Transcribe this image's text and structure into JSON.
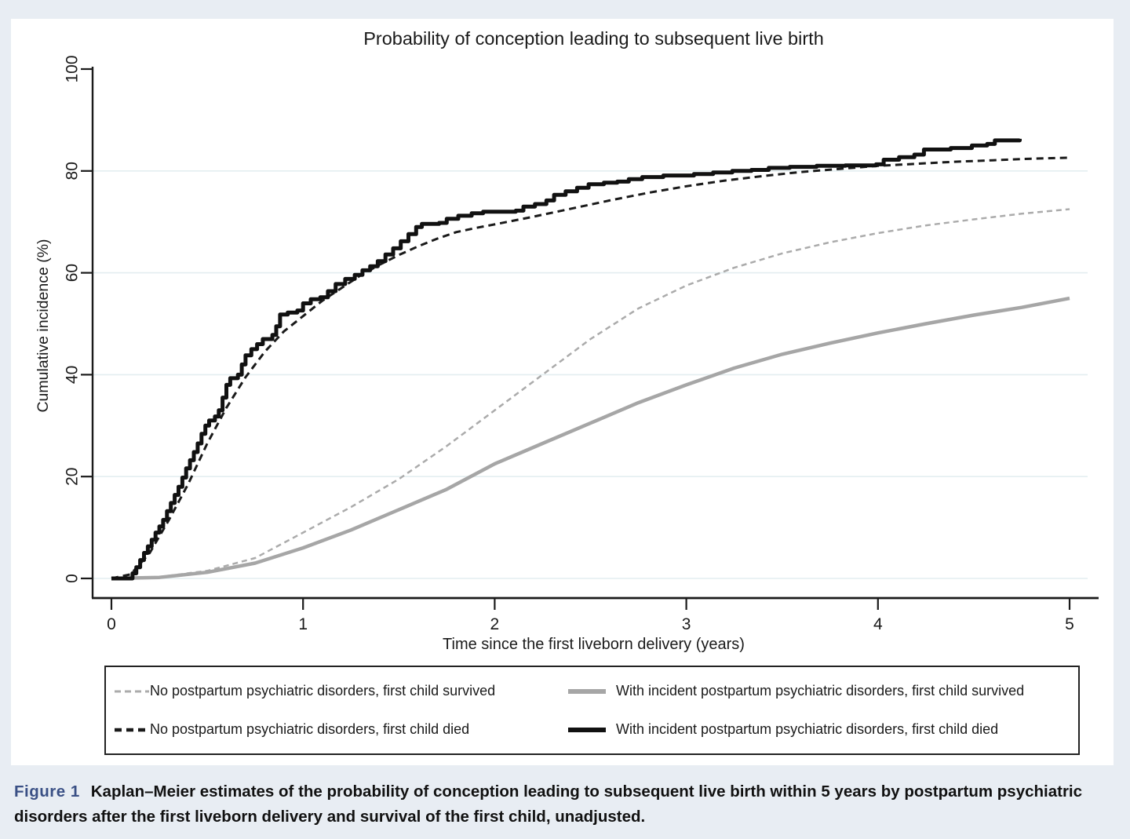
{
  "figure": {
    "caption_label": "Figure 1",
    "caption_label_color": "#3a5085",
    "caption_text": "Kaplan–Meier estimates of the probability of conception leading to subsequent live birth within 5 years by postpartum psychiatric disorders after the first liveborn delivery and survival of the first child, unadjusted."
  },
  "chart_data": {
    "type": "line",
    "title": "Probability of conception leading to subsequent live birth",
    "xlabel": "Time since the first liveborn delivery (years)",
    "ylabel": "Cumulative incidence (%)",
    "xlim": [
      0,
      5
    ],
    "ylim": [
      0,
      100
    ],
    "xticks": [
      0,
      1,
      2,
      3,
      4,
      5
    ],
    "yticks": [
      0,
      20,
      40,
      60,
      80,
      100
    ],
    "grid_y": [
      0,
      20,
      40,
      60,
      80
    ],
    "grid": "horizontal only, very light",
    "legend_position": "boxed legend below plot, 2 rows x 2 columns",
    "series": [
      {
        "name": "No postpartum psychiatric disorders, first child survived",
        "style": "dashed",
        "color": "#ababab",
        "width": 2.5,
        "dash": "7 5",
        "interp": "linear",
        "points": [
          [
            0,
            0
          ],
          [
            0.25,
            0.3
          ],
          [
            0.5,
            1.5
          ],
          [
            0.75,
            4
          ],
          [
            1,
            9
          ],
          [
            1.25,
            14
          ],
          [
            1.5,
            19.5
          ],
          [
            1.75,
            26
          ],
          [
            2,
            33
          ],
          [
            2.25,
            40
          ],
          [
            2.5,
            47
          ],
          [
            2.75,
            53
          ],
          [
            3,
            57.5
          ],
          [
            3.25,
            61
          ],
          [
            3.5,
            63.8
          ],
          [
            3.75,
            66
          ],
          [
            4,
            67.8
          ],
          [
            4.25,
            69.3
          ],
          [
            4.5,
            70.5
          ],
          [
            4.75,
            71.6
          ],
          [
            5,
            72.5
          ]
        ]
      },
      {
        "name": "With incident postpartum psychiatric disorders, first child survived",
        "style": "solid",
        "color": "#a6a6a6",
        "width": 4.5,
        "dash": null,
        "interp": "linear",
        "points": [
          [
            0,
            0
          ],
          [
            0.25,
            0.2
          ],
          [
            0.5,
            1.2
          ],
          [
            0.75,
            3
          ],
          [
            1,
            6
          ],
          [
            1.25,
            9.5
          ],
          [
            1.5,
            13.5
          ],
          [
            1.75,
            17.5
          ],
          [
            2,
            22.5
          ],
          [
            2.25,
            26.5
          ],
          [
            2.5,
            30.5
          ],
          [
            2.75,
            34.5
          ],
          [
            3,
            38
          ],
          [
            3.25,
            41.3
          ],
          [
            3.5,
            44
          ],
          [
            3.75,
            46.2
          ],
          [
            4,
            48.2
          ],
          [
            4.25,
            50
          ],
          [
            4.5,
            51.7
          ],
          [
            4.75,
            53.2
          ],
          [
            5,
            55
          ]
        ]
      },
      {
        "name": "No postpartum psychiatric disorders, first child died",
        "style": "dashed",
        "color": "#1a1a1a",
        "width": 3,
        "dash": "9 6",
        "interp": "linear",
        "points": [
          [
            0,
            0
          ],
          [
            0.1,
            0.8
          ],
          [
            0.2,
            5
          ],
          [
            0.3,
            11.5
          ],
          [
            0.4,
            18.5
          ],
          [
            0.5,
            26.5
          ],
          [
            0.6,
            33.5
          ],
          [
            0.7,
            39.5
          ],
          [
            0.8,
            44.5
          ],
          [
            0.9,
            48.5
          ],
          [
            1,
            51.5
          ],
          [
            1.1,
            54.5
          ],
          [
            1.2,
            57
          ],
          [
            1.3,
            59.5
          ],
          [
            1.4,
            61.6
          ],
          [
            1.5,
            63.5
          ],
          [
            1.6,
            65.2
          ],
          [
            1.7,
            66.7
          ],
          [
            1.8,
            68
          ],
          [
            1.9,
            68.8
          ],
          [
            2,
            69.5
          ],
          [
            2.2,
            71
          ],
          [
            2.4,
            72.6
          ],
          [
            2.6,
            74.2
          ],
          [
            2.8,
            75.7
          ],
          [
            3,
            77
          ],
          [
            3.2,
            78.1
          ],
          [
            3.4,
            79
          ],
          [
            3.6,
            79.8
          ],
          [
            3.8,
            80.4
          ],
          [
            4,
            81
          ],
          [
            4.2,
            81.4
          ],
          [
            4.4,
            81.8
          ],
          [
            4.6,
            82.1
          ],
          [
            4.8,
            82.4
          ],
          [
            5,
            82.6
          ]
        ]
      },
      {
        "name": "With incident postpartum psychiatric disorders, first child died",
        "style": "solid",
        "color": "#111111",
        "width": 5,
        "dash": null,
        "interp": "step",
        "points": [
          [
            0,
            0
          ],
          [
            0.09,
            0
          ],
          [
            0.11,
            1
          ],
          [
            0.13,
            2.2
          ],
          [
            0.15,
            3.6
          ],
          [
            0.17,
            5
          ],
          [
            0.19,
            6.3
          ],
          [
            0.21,
            7.6
          ],
          [
            0.23,
            9
          ],
          [
            0.25,
            10.2
          ],
          [
            0.27,
            11.5
          ],
          [
            0.29,
            13.2
          ],
          [
            0.31,
            14.8
          ],
          [
            0.33,
            16.4
          ],
          [
            0.35,
            18
          ],
          [
            0.37,
            19.8
          ],
          [
            0.39,
            21.6
          ],
          [
            0.41,
            23.2
          ],
          [
            0.43,
            24.8
          ],
          [
            0.45,
            26.5
          ],
          [
            0.47,
            28.4
          ],
          [
            0.49,
            30
          ],
          [
            0.51,
            31
          ],
          [
            0.54,
            31.8
          ],
          [
            0.56,
            33
          ],
          [
            0.58,
            35.5
          ],
          [
            0.6,
            38
          ],
          [
            0.62,
            39.3
          ],
          [
            0.66,
            40
          ],
          [
            0.68,
            42
          ],
          [
            0.7,
            43.8
          ],
          [
            0.73,
            45
          ],
          [
            0.76,
            46
          ],
          [
            0.79,
            47
          ],
          [
            0.84,
            47.8
          ],
          [
            0.86,
            49.5
          ],
          [
            0.88,
            51.8
          ],
          [
            0.92,
            52.2
          ],
          [
            0.97,
            52.6
          ],
          [
            1,
            54
          ],
          [
            1.04,
            54.8
          ],
          [
            1.09,
            55.2
          ],
          [
            1.13,
            56.4
          ],
          [
            1.17,
            57.8
          ],
          [
            1.22,
            58.8
          ],
          [
            1.27,
            59.6
          ],
          [
            1.31,
            60.5
          ],
          [
            1.35,
            61.3
          ],
          [
            1.39,
            62.3
          ],
          [
            1.43,
            63.6
          ],
          [
            1.47,
            64.8
          ],
          [
            1.51,
            66.2
          ],
          [
            1.55,
            67.6
          ],
          [
            1.59,
            69
          ],
          [
            1.62,
            69.6
          ],
          [
            1.71,
            69.8
          ],
          [
            1.75,
            70.6
          ],
          [
            1.81,
            71.2
          ],
          [
            1.88,
            71.7
          ],
          [
            1.94,
            72
          ],
          [
            2.11,
            72.2
          ],
          [
            2.15,
            73
          ],
          [
            2.21,
            73.5
          ],
          [
            2.27,
            74.2
          ],
          [
            2.31,
            75.3
          ],
          [
            2.37,
            76
          ],
          [
            2.43,
            76.7
          ],
          [
            2.49,
            77.4
          ],
          [
            2.57,
            77.7
          ],
          [
            2.64,
            77.9
          ],
          [
            2.7,
            78.4
          ],
          [
            2.77,
            78.8
          ],
          [
            2.88,
            79.1
          ],
          [
            3.04,
            79.4
          ],
          [
            3.14,
            79.7
          ],
          [
            3.24,
            80
          ],
          [
            3.34,
            80.2
          ],
          [
            3.43,
            80.6
          ],
          [
            3.54,
            80.8
          ],
          [
            3.68,
            81
          ],
          [
            3.83,
            81.1
          ],
          [
            3.99,
            81.3
          ],
          [
            4.03,
            82.2
          ],
          [
            4.11,
            82.7
          ],
          [
            4.19,
            83.2
          ],
          [
            4.24,
            84.2
          ],
          [
            4.38,
            84.5
          ],
          [
            4.49,
            85
          ],
          [
            4.57,
            85.3
          ],
          [
            4.61,
            86
          ],
          [
            4.74,
            86.3
          ]
        ]
      }
    ]
  }
}
